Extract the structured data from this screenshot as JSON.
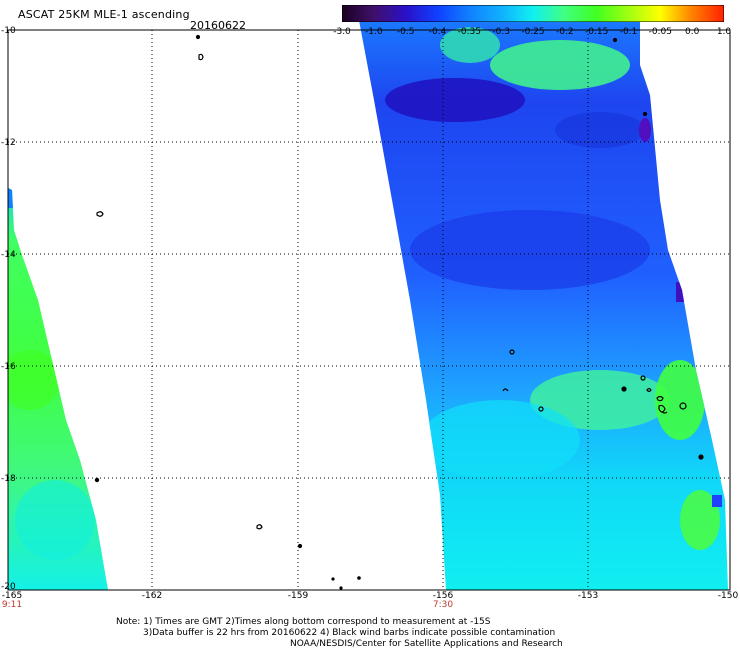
{
  "header": {
    "title": "ASCAT 25KM MLE-1 ascending",
    "date": "20160622"
  },
  "colorbar": {
    "ticks": [
      "-3.0",
      "-1.0",
      "-0.5",
      "-0.4",
      "-0.35",
      "-0.3",
      "-0.25",
      "-0.2",
      "-0.15",
      "-0.1",
      "-0.05",
      "0.0",
      "1.0"
    ],
    "colors": [
      "#1a0020",
      "#40106a",
      "#2a10c8",
      "#1040ff",
      "#1080ff",
      "#10b0ff",
      "#10f0f0",
      "#40ff80",
      "#40ff20",
      "#a0ff10",
      "#ffff00",
      "#ff8000",
      "#ff2000"
    ]
  },
  "axes": {
    "y_ticks": [
      "-10",
      "-12",
      "-14",
      "-16",
      "-18",
      "-20"
    ],
    "x_ticks": [
      "-165",
      "-162",
      "-159",
      "-156",
      "-153",
      "-150"
    ],
    "time_labels": [
      "9:11",
      "7:30"
    ],
    "time_color": "#c0392b"
  },
  "notes": {
    "line1": "Note: 1) Times are GMT 2)Times along bottom correspond to measurement at -15S",
    "line2": "3)Data buffer is 22 hrs from 20160622 4) Black wind barbs indicate possible contamination",
    "line3": "NOAA/NESDIS/Center for Satellite Applications and Research"
  }
}
